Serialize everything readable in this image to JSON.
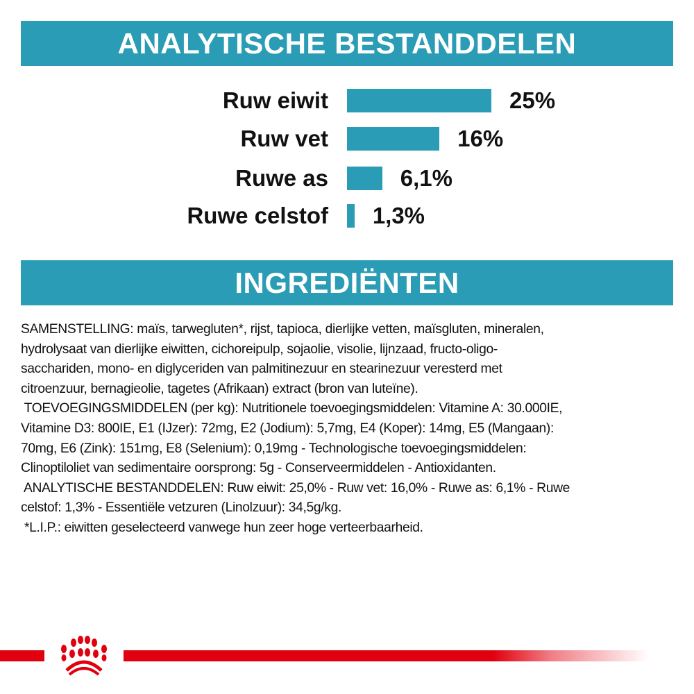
{
  "analysis": {
    "title": "ANALYTISCHE BESTANDDELEN",
    "items": [
      {
        "label": "Ruw eiwit",
        "value": "25%"
      },
      {
        "label": "Ruw vet",
        "value": "16%"
      },
      {
        "label": "Ruwe as",
        "value": "6,1%"
      },
      {
        "label": "Ruwe celstof",
        "value": "1,3%"
      }
    ]
  },
  "chart_data": {
    "type": "bar",
    "orientation": "horizontal",
    "title": "ANALYTISCHE BESTANDDELEN",
    "categories": [
      "Ruw eiwit",
      "Ruw vet",
      "Ruwe as",
      "Ruwe celstof"
    ],
    "values": [
      25,
      16,
      6.1,
      1.3
    ],
    "data_labels": [
      "25%",
      "16%",
      "6,1%",
      "1,3%"
    ],
    "unit": "%",
    "grid": false,
    "bar_color": "#2a9cb5"
  },
  "ingredients": {
    "title": "INGREDIËNTEN",
    "lines": [
      "SAMENSTELLING: maïs, tarwegluten*, rijst, tapioca, dierlijke vetten, maïsgluten, mineralen,",
      "hydrolysaat van dierlijke eiwitten, cichoreipulp, sojaolie, visolie, lijnzaad, fructo-oligo-",
      "sacchariden, mono- en diglyceriden van palmitinezuur en stearinezuur veresterd met",
      "citroenzuur, bernagieolie, tagetes (Afrikaan) extract (bron van luteïne).",
      " TOEVOEGINGSMIDDELEN (per kg): Nutritionele toevoegingsmiddelen: Vitamine A: 30.000IE,",
      "Vitamine D3: 800IE, E1 (IJzer): 72mg, E2 (Jodium): 5,7mg, E4 (Koper): 14mg, E5 (Mangaan):",
      "70mg, E6 (Zink): 151mg, E8 (Selenium): 0,19mg - Technologische toevoegingsmiddelen:",
      "Clinoptiloliet van sedimentaire oorsprong: 5g - Conserveermiddelen - Antioxidanten.",
      " ANALYTISCHE BESTANDDELEN: Ruw eiwit: 25,0% - Ruw vet: 16,0% - Ruwe as: 6,1% - Ruwe",
      "celstof: 1,3% - Essentiële vetzuren (Linolzuur): 34,5g/kg.",
      " *L.I.P.: eiwitten geselecteerd vanwege hun zeer hoge verteerbaarheid."
    ]
  },
  "colors": {
    "accent": "#2a9cb5",
    "brand_red": "#e1000f"
  },
  "footer": {
    "logo_icon": "crown-paw-logo-icon"
  }
}
